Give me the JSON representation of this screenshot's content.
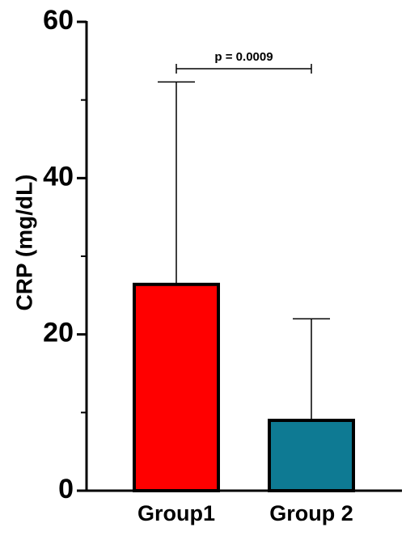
{
  "chart_data": {
    "type": "bar",
    "y_label": "CRP (mg/dL)",
    "categories": [
      "Group1",
      "Group 2"
    ],
    "values": [
      26.4,
      9.0
    ],
    "errors": [
      25.9,
      13.0
    ],
    "colors": [
      "#ff0000",
      "#0e7a93"
    ],
    "ylim": [
      0,
      60
    ],
    "yticks": [
      0,
      20,
      40,
      60
    ],
    "yminor_ticks": [
      10,
      30,
      50
    ],
    "annotation": "p = 0.0009"
  }
}
